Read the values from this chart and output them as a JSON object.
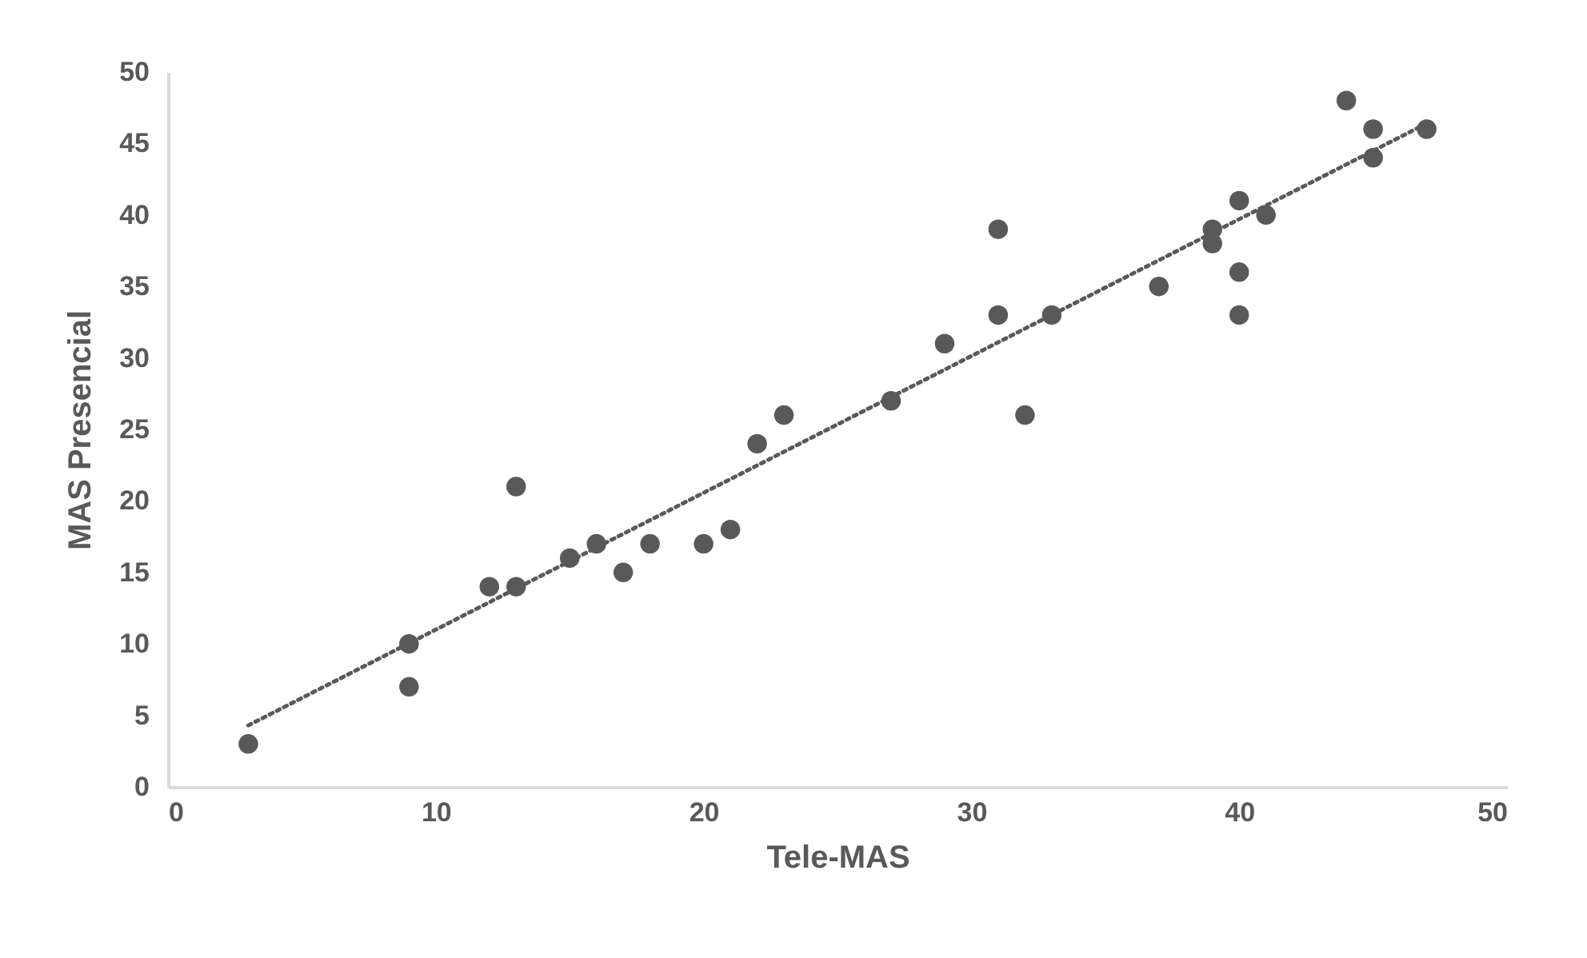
{
  "chart_data": {
    "type": "scatter",
    "xlabel": "Tele-MAS",
    "ylabel": "MAS Presencial",
    "xlim": [
      0,
      50
    ],
    "xticks": [
      0,
      10,
      20,
      30,
      40,
      50
    ],
    "ylim": [
      0,
      50
    ],
    "yticks": [
      0,
      5,
      10,
      15,
      20,
      25,
      30,
      35,
      40,
      45,
      50
    ],
    "grid": false,
    "series": [
      {
        "marker": "circle",
        "color": "#595959",
        "x": [
          3,
          9,
          9,
          12,
          13,
          13,
          15,
          16,
          17,
          18,
          20,
          21,
          22,
          23,
          27,
          29,
          31,
          31,
          32,
          33,
          37,
          39,
          39,
          40,
          40,
          40,
          41,
          44,
          45,
          45,
          47
        ],
        "values": [
          3,
          10,
          7,
          14,
          21,
          14,
          16,
          17,
          15,
          17,
          17,
          18,
          24,
          26,
          27,
          31,
          39,
          33,
          26,
          33,
          35,
          39,
          38,
          41,
          36,
          33,
          40,
          48,
          46,
          44,
          46
        ]
      },
      {
        "type": "line",
        "marker": "none",
        "color": "#595959",
        "line_style": "dotted",
        "x": [
          3,
          47
        ],
        "values": [
          4.3,
          46.4
        ]
      }
    ]
  }
}
